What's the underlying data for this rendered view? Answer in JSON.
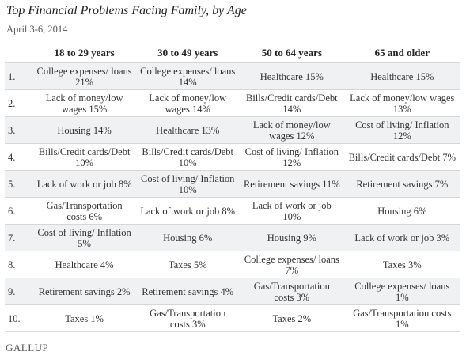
{
  "header": {
    "title": "Top Financial Problems Facing Family, by Age",
    "subtitle": "April 3-6, 2014"
  },
  "table": {
    "columns": [
      "18 to 29 years",
      "30 to 49 years",
      "50 to 64 years",
      "65 and older"
    ],
    "rows": [
      [
        "1.",
        "College expenses/ loans 21%",
        "College expenses/ loans 14%",
        "Healthcare 15%",
        "Healthcare 15%"
      ],
      [
        "2.",
        "Lack of money/low wages 15%",
        "Lack of money/low wages 14%",
        "Bills/Credit cards/Debt 14%",
        "Lack of money/low wages 13%"
      ],
      [
        "3.",
        "Housing 14%",
        "Healthcare 13%",
        "Lack of money/low wages 12%",
        "Cost of living/ Inflation 12%"
      ],
      [
        "4.",
        "Bills/Credit cards/Debt 10%",
        "Bills/Credit cards/Debt 10%",
        "Cost of living/ Inflation 12%",
        "Bills/Credit cards/Debt 7%"
      ],
      [
        "5.",
        "Lack of work or job 8%",
        "Cost of living/ Inflation 10%",
        "Retirement savings 11%",
        "Retirement savings 7%"
      ],
      [
        "6.",
        "Gas/Transportation costs 6%",
        "Lack of work or job 8%",
        "Lack of work or job 10%",
        "Housing 6%"
      ],
      [
        "7.",
        "Cost of living/ Inflation 5%",
        "Housing 6%",
        "Housing 9%",
        "Lack of work or job 3%"
      ],
      [
        "8.",
        "Healthcare 4%",
        "Taxes 5%",
        "College expenses/ loans 7%",
        "Taxes 3%"
      ],
      [
        "9.",
        "Retirement savings 2%",
        "Retirement savings 4%",
        "Gas/Transportation costs 3%",
        "College expenses/ loans 1%"
      ],
      [
        "10.",
        "Taxes 1%",
        "Gas/Transportation costs 3%",
        "Taxes 2%",
        "Gas/Transportation costs 1%"
      ]
    ]
  },
  "footer": {
    "source": "GALLUP"
  }
}
